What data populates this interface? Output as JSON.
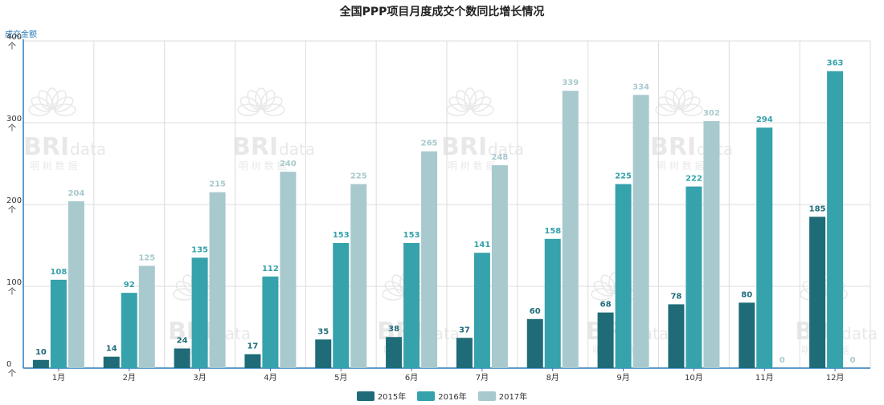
{
  "chart_data": {
    "type": "bar",
    "title": "全国PPP项目月度成交个数同比增长情况",
    "ylabel": "成交金额",
    "ylim": [
      0,
      400
    ],
    "yticks": [
      {
        "value": 0,
        "label": "0",
        "unit": "个"
      },
      {
        "value": 100,
        "label": "100",
        "unit": "个"
      },
      {
        "value": 200,
        "label": "200",
        "unit": "个"
      },
      {
        "value": 300,
        "label": "300",
        "unit": "个"
      },
      {
        "value": 400,
        "label": "400",
        "unit": "个"
      }
    ],
    "categories": [
      "1月",
      "2月",
      "3月",
      "4月",
      "5月",
      "6月",
      "7月",
      "8月",
      "9月",
      "10月",
      "11月",
      "12月"
    ],
    "series": [
      {
        "name": "2015年",
        "color": "#1f6b78",
        "values": [
          10,
          14,
          24,
          17,
          35,
          38,
          37,
          60,
          68,
          78,
          80,
          185
        ]
      },
      {
        "name": "2016年",
        "color": "#35a2ac",
        "values": [
          108,
          92,
          135,
          112,
          153,
          153,
          141,
          158,
          225,
          222,
          294,
          363
        ]
      },
      {
        "name": "2017年",
        "color": "#a8c9cd",
        "values": [
          204,
          125,
          215,
          240,
          225,
          265,
          248,
          339,
          334,
          302,
          0,
          0
        ]
      }
    ],
    "grid": true,
    "legend_position": "bottom-center"
  },
  "watermark": {
    "brand": "BRI",
    "suffix": "data",
    "subtitle": "明 树 数 据"
  }
}
